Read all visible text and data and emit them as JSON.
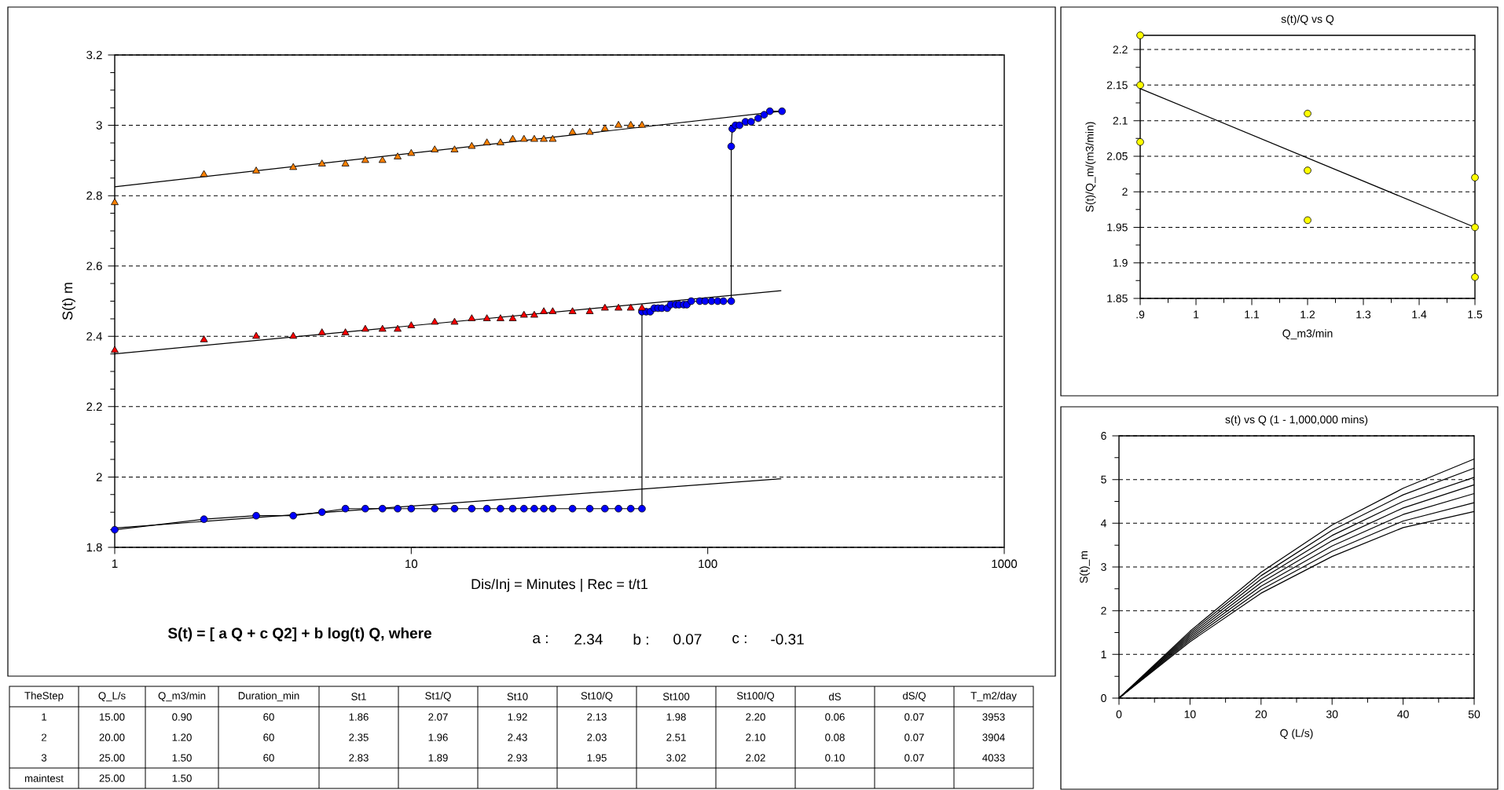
{
  "chart_data": [
    {
      "type": "line",
      "xlabel": "Dis/Inj = Minutes | Rec = t/t1",
      "ylabel": "S(t) m",
      "log": "x",
      "grid": "y",
      "xlim": [
        1,
        1000
      ],
      "xticks": [
        1,
        10,
        100,
        1000
      ],
      "ylim": [
        1.8,
        3.2
      ],
      "yticks": [
        1.8,
        2,
        2.2,
        2.4,
        2.6,
        2.8,
        3,
        3.2
      ],
      "annotations": [
        "S(t) = [ a Q + c Q2] + b log(t) Q, where",
        "a :",
        "2.34",
        "b :",
        "0.07",
        "c :",
        "-0.31"
      ],
      "series": [
        {
          "type": "line",
          "marker": "circle",
          "color": "#0000ff",
          "x": [
            1,
            2,
            3,
            4,
            5,
            6,
            7,
            8,
            9,
            10,
            12,
            14,
            16,
            18,
            20,
            22,
            24,
            26,
            28,
            30,
            35,
            40,
            45,
            50,
            55,
            60,
            60,
            62,
            64,
            66,
            68,
            70,
            73,
            75,
            78,
            80,
            83,
            85,
            88,
            94,
            98,
            103,
            108,
            113,
            120,
            120,
            121,
            124,
            128,
            134,
            140,
            148,
            155,
            162,
            178
          ],
          "values": [
            1.85,
            1.88,
            1.89,
            1.89,
            1.9,
            1.91,
            1.91,
            1.91,
            1.91,
            1.91,
            1.91,
            1.91,
            1.91,
            1.91,
            1.91,
            1.91,
            1.91,
            1.91,
            1.91,
            1.91,
            1.91,
            1.91,
            1.91,
            1.91,
            1.91,
            1.91,
            2.47,
            2.47,
            2.47,
            2.48,
            2.48,
            2.48,
            2.48,
            2.49,
            2.49,
            2.49,
            2.49,
            2.49,
            2.5,
            2.5,
            2.5,
            2.5,
            2.5,
            2.5,
            2.5,
            2.94,
            2.99,
            3.0,
            3.0,
            3.01,
            3.01,
            3.02,
            3.03,
            3.04,
            3.04
          ]
        },
        {
          "type": "scatter",
          "marker": "triangle",
          "color": "#ff0000",
          "x": [
            1,
            2,
            3,
            4,
            5,
            6,
            7,
            8,
            9,
            10,
            12,
            14,
            16,
            18,
            20,
            22,
            24,
            26,
            28,
            30,
            35,
            40,
            45,
            50,
            55,
            60
          ],
          "values": [
            2.36,
            2.39,
            2.4,
            2.4,
            2.41,
            2.41,
            2.42,
            2.42,
            2.42,
            2.43,
            2.44,
            2.44,
            2.45,
            2.45,
            2.45,
            2.45,
            2.46,
            2.46,
            2.47,
            2.47,
            2.47,
            2.47,
            2.48,
            2.48,
            2.48,
            2.48
          ]
        },
        {
          "type": "scatter",
          "marker": "triangle",
          "color": "#ff8000",
          "x": [
            1,
            2,
            3,
            4,
            5,
            6,
            7,
            8,
            9,
            10,
            12,
            14,
            16,
            18,
            20,
            22,
            24,
            26,
            28,
            30,
            35,
            40,
            45,
            50,
            55,
            60
          ],
          "values": [
            2.78,
            2.86,
            2.87,
            2.88,
            2.89,
            2.89,
            2.9,
            2.9,
            2.91,
            2.92,
            2.93,
            2.93,
            2.94,
            2.95,
            2.95,
            2.96,
            2.96,
            2.96,
            2.96,
            2.96,
            2.98,
            2.98,
            2.99,
            3.0,
            3.0,
            3.0
          ]
        },
        {
          "type": "line",
          "marker": "none",
          "color": "#000000",
          "x": [
            1,
            177
          ],
          "values": [
            1.855,
            1.995
          ]
        },
        {
          "type": "line",
          "marker": "none",
          "color": "#000000",
          "x": [
            1,
            177
          ],
          "values": [
            2.35,
            2.53
          ]
        },
        {
          "type": "line",
          "marker": "none",
          "color": "#000000",
          "x": [
            1,
            177
          ],
          "values": [
            2.825,
            3.04
          ]
        }
      ]
    },
    {
      "type": "scatter",
      "title": "s(t)/Q vs Q",
      "xlabel": "Q_m3/min",
      "ylabel": "S(t)/Q_m/(m3/min)",
      "grid": "y",
      "xlim": [
        0.9,
        1.5
      ],
      "xticks": [
        {
          "value": 0.9,
          "label": ".9"
        },
        1,
        1.1,
        1.2,
        1.3,
        1.4,
        1.5
      ],
      "ylim": [
        1.85,
        2.22
      ],
      "yticks": [
        1.85,
        1.9,
        1.95,
        2,
        2.05,
        2.1,
        2.15,
        2.2
      ],
      "series": [
        {
          "type": "scatter",
          "marker": "circle",
          "color": "#ffff00",
          "x": [
            0.9,
            0.9,
            0.9,
            1.2,
            1.2,
            1.2,
            1.5,
            1.5,
            1.5
          ],
          "values": [
            2.22,
            2.15,
            2.07,
            2.11,
            2.03,
            1.96,
            2.02,
            1.95,
            1.88
          ]
        },
        {
          "type": "line",
          "marker": "none",
          "color": "#000000",
          "x": [
            0.9,
            1.5
          ],
          "values": [
            2.145,
            1.95
          ]
        }
      ]
    },
    {
      "type": "line",
      "title": "s(t) vs Q (1 - 1,000,000 mins)",
      "xlabel": "Q (L/s)",
      "ylabel": "S(t)_m",
      "grid": "y",
      "xlim": [
        0,
        50
      ],
      "xticks": [
        0,
        10,
        20,
        30,
        40,
        50
      ],
      "ylim": [
        0,
        6
      ],
      "yticks": [
        0,
        1,
        2,
        3,
        4,
        5,
        6
      ],
      "x": [
        0,
        10,
        20,
        30,
        40,
        50
      ],
      "series": [
        {
          "color": "#000000",
          "values": [
            0,
            1.29,
            2.4,
            3.24,
            3.9,
            4.27
          ]
        },
        {
          "color": "#000000",
          "values": [
            0,
            1.33,
            2.48,
            3.36,
            4.05,
            4.47
          ]
        },
        {
          "color": "#000000",
          "values": [
            0,
            1.37,
            2.56,
            3.48,
            4.2,
            4.68
          ]
        },
        {
          "color": "#000000",
          "values": [
            0,
            1.41,
            2.64,
            3.6,
            4.35,
            4.88
          ]
        },
        {
          "color": "#000000",
          "values": [
            0,
            1.45,
            2.72,
            3.72,
            4.5,
            5.05
          ]
        },
        {
          "color": "#000000",
          "values": [
            0,
            1.49,
            2.8,
            3.84,
            4.65,
            5.26
          ]
        },
        {
          "color": "#000000",
          "values": [
            0,
            1.53,
            2.88,
            3.96,
            4.8,
            5.47
          ]
        }
      ]
    },
    {
      "type": "other",
      "categories": [
        "TheStep",
        "Q_L/s",
        "Q_m3/min",
        "Duration_min",
        "St1",
        "St1/Q",
        "St10",
        "St10/Q",
        "St100",
        "St100/Q",
        "dS",
        "dS/Q",
        "T_m2/day"
      ],
      "cell_labels": [
        [
          "1",
          "15.00",
          "0.90",
          "60",
          "1.86",
          "2.07",
          "1.92",
          "2.13",
          "1.98",
          "2.20",
          "0.06",
          "0.07",
          "3953"
        ],
        [
          "2",
          "20.00",
          "1.20",
          "60",
          "2.35",
          "1.96",
          "2.43",
          "2.03",
          "2.51",
          "2.10",
          "0.08",
          "0.07",
          "3904"
        ],
        [
          "3",
          "25.00",
          "1.50",
          "60",
          "2.83",
          "1.89",
          "2.93",
          "1.95",
          "3.02",
          "2.02",
          "0.10",
          "0.07",
          "4033"
        ],
        [
          "maintest",
          "25.00",
          "1.50",
          null,
          null,
          null,
          null,
          null,
          null,
          null,
          null,
          null,
          null
        ]
      ]
    }
  ]
}
